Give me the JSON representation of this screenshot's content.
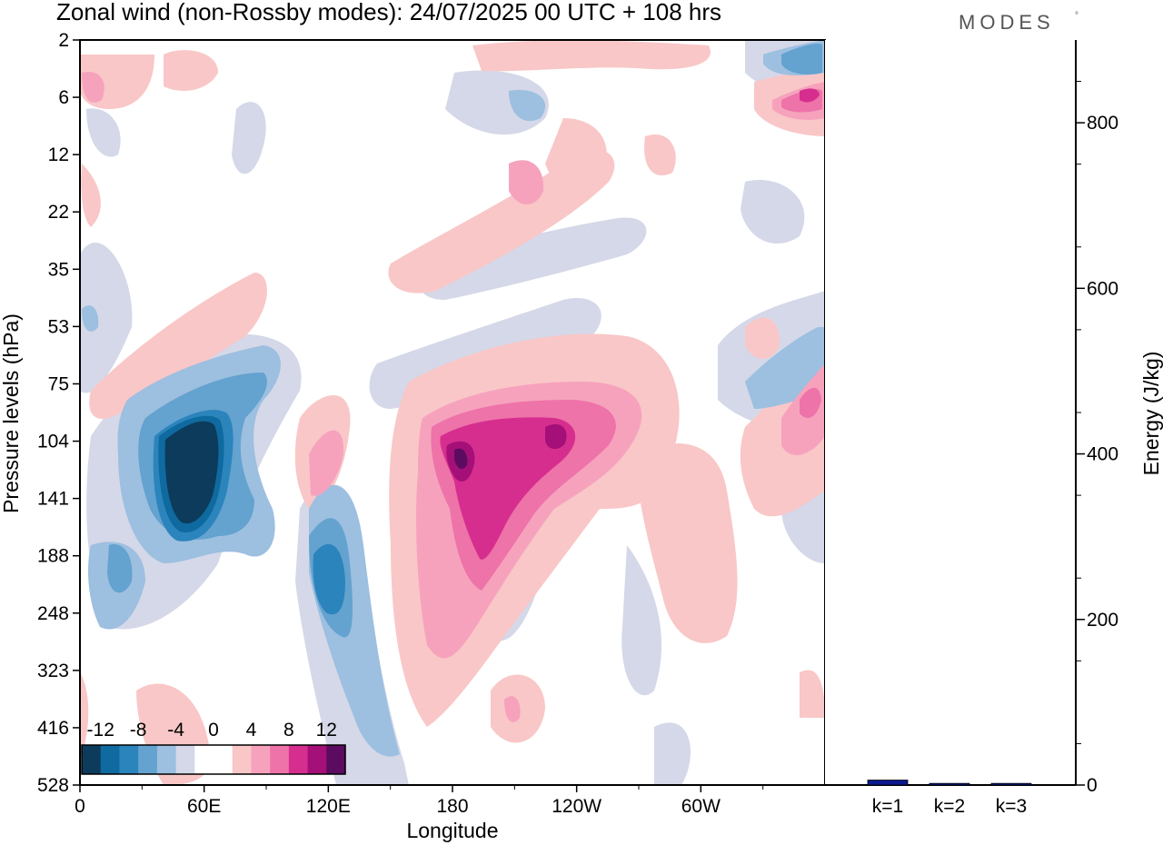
{
  "chart_data": [
    {
      "type": "heatmap",
      "title": "Zonal wind (non-Rossby modes):  24/07/2025  00 UTC  + 108 hrs",
      "xlabel": "Longitude",
      "ylabel": "Pressure levels (hPa)",
      "x_ticks": [
        "0",
        "60E",
        "120E",
        "180",
        "120W",
        "60W"
      ],
      "x_tick_degrees": [
        0,
        60,
        120,
        180,
        240,
        300
      ],
      "xlim": [
        0,
        360
      ],
      "y_ticks": [
        "2",
        "6",
        "12",
        "22",
        "35",
        "53",
        "75",
        "104",
        "141",
        "188",
        "248",
        "323",
        "416",
        "528"
      ],
      "colorbar": {
        "labels": [
          "-12",
          "-8",
          "-4",
          "0",
          "4",
          "8",
          "12"
        ],
        "colors": [
          "#0d3b5b",
          "#0f6aa0",
          "#2c84bd",
          "#64a2cf",
          "#9dbfe0",
          "#d4d8e8",
          "#ffffff",
          "#ffffff",
          "#f9c7c7",
          "#f6a2bd",
          "#ee73a8",
          "#d62e8f",
          "#a41078",
          "#5b0b60"
        ]
      },
      "features": [
        {
          "name": "westerly-core-180",
          "lon": 186,
          "level": "141",
          "value": 14
        },
        {
          "name": "easterly-core-55E",
          "lon": 53,
          "level": "141",
          "value": -14
        },
        {
          "name": "easterly-core-125E",
          "lon": 124,
          "level": "248",
          "value": -10
        },
        {
          "name": "stratospheric-westerly-6hPa",
          "lon": 355,
          "level": "6",
          "value": 12
        }
      ]
    },
    {
      "type": "bar",
      "ylabel": "Energy (J/kg)",
      "ylim": [
        0,
        900
      ],
      "y_ticks": [
        "0",
        "200",
        "400",
        "600",
        "800"
      ],
      "categories": [
        "k=1",
        "k=2",
        "k=3"
      ],
      "values": [
        6,
        2,
        2
      ],
      "bar_color": "#0b1a8c"
    }
  ],
  "branding": {
    "logo_text": "MODES",
    "mark": "°"
  }
}
